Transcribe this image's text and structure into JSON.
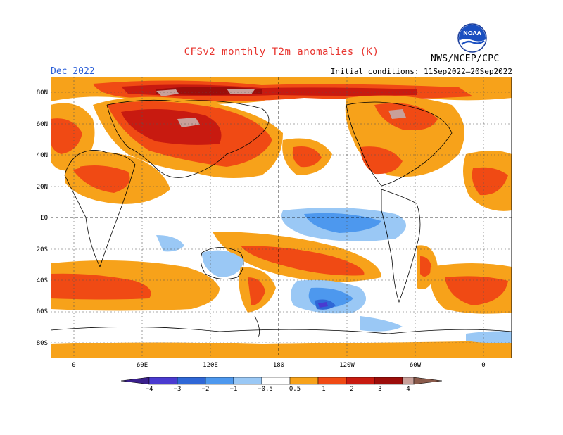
{
  "header": {
    "title": "CFSv2 monthly T2m anomalies (K)",
    "month": "Dec 2022",
    "initial_conditions": "Initial conditions: 11Sep2022–20Sep2022",
    "agency": "NWS/NCEP/CPC",
    "logo_text": "NOAA"
  },
  "map": {
    "lat_labels": [
      "80N",
      "60N",
      "40N",
      "20N",
      "EQ",
      "20S",
      "40S",
      "60S",
      "80S"
    ],
    "lon_labels": [
      "0",
      "60E",
      "120E",
      "180",
      "120W",
      "60W",
      "0"
    ],
    "lat_values": [
      80,
      60,
      40,
      20,
      0,
      -20,
      -40,
      -60,
      -80
    ],
    "lon_values": [
      0,
      60,
      120,
      180,
      240,
      300,
      360
    ]
  },
  "legend": {
    "labels": [
      "−4",
      "−3",
      "−2",
      "−1",
      "−0.5",
      "0.5",
      "1",
      "2",
      "3",
      "4"
    ],
    "colors": {
      "lt_neg4": "#3a1f8c",
      "neg4_neg3": "#4a3ad0",
      "neg3_neg2": "#2f67d6",
      "neg2_neg1": "#4d98ee",
      "neg1_neg05": "#9ac8f5",
      "neutral": "#ffffff",
      "p05_1": "#f7a21a",
      "p1_2": "#f04a14",
      "p2_3": "#c81a10",
      "p3_4": "#9c0d0a",
      "p4_5": "#c8a09a",
      "gt5": "#8a5a4a"
    }
  }
}
